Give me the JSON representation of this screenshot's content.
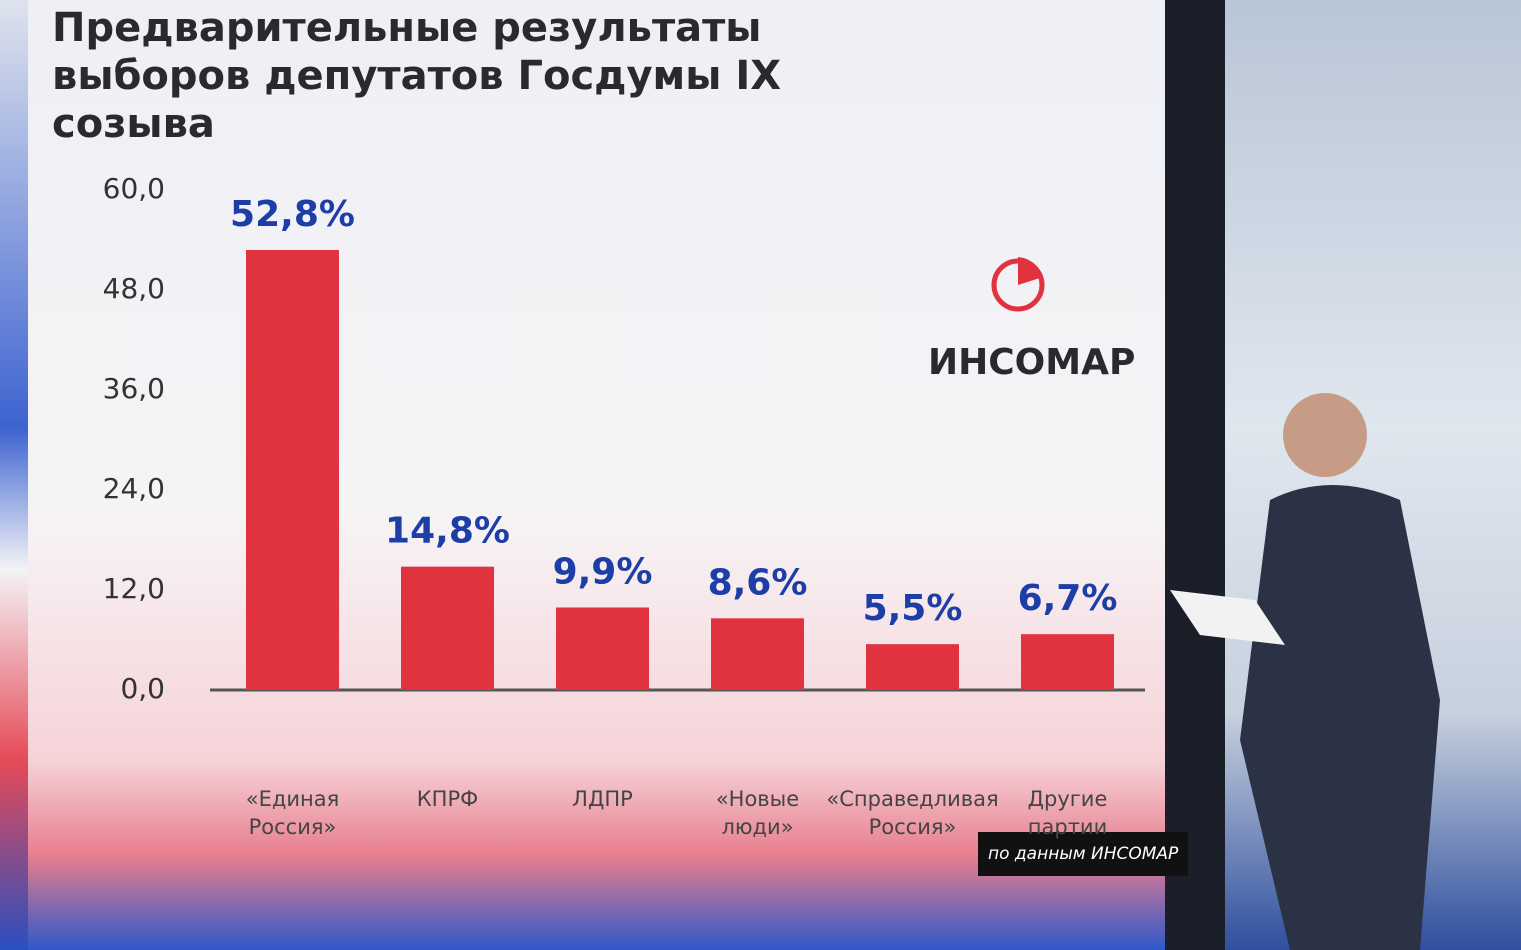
{
  "chart_data": {
    "type": "bar",
    "title": "Предварительные результаты выборов депутатов Госдумы IX созыва",
    "categories": [
      "«Единая Россия»",
      "КПРФ",
      "ЛДПР",
      "«Новые люди»",
      "«Справедливая Россия»",
      "Другие партии"
    ],
    "values": [
      52.8,
      14.8,
      9.9,
      8.6,
      5.5,
      6.7
    ],
    "value_labels": [
      "52,8%",
      "14,8%",
      "9,9%",
      "8,6%",
      "5,5%",
      "6,7%"
    ],
    "color": "#e0323f",
    "label_color": "#1c3ea6",
    "ylim": [
      0,
      60
    ],
    "yticks": [
      {
        "value": 0,
        "label": "0,0"
      },
      {
        "value": 12,
        "label": "12,0"
      },
      {
        "value": 24,
        "label": "24,0"
      },
      {
        "value": 36,
        "label": "36,0"
      },
      {
        "value": 48,
        "label": "48,0"
      },
      {
        "value": 60,
        "label": "60,0"
      }
    ],
    "grid": false,
    "logo": "ИНСОМАР",
    "source": "по данным ИНСОМАР"
  }
}
